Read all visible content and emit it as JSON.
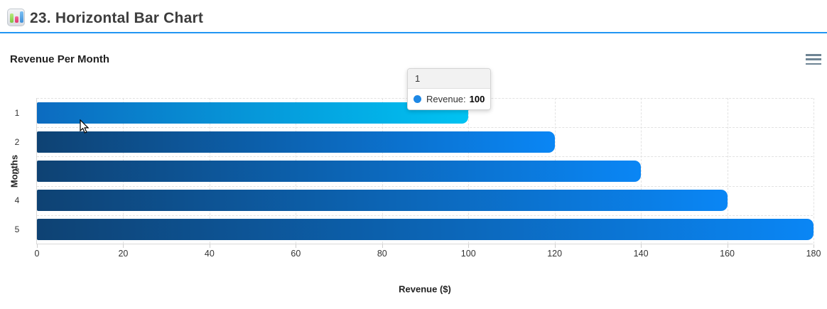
{
  "header": {
    "title": "23. Horizontal Bar Chart"
  },
  "chart": {
    "title": "Revenue Per Month",
    "xlabel": "Revenue ($)",
    "ylabel": "Months",
    "tooltip": {
      "category": "1",
      "series_label": "Revenue:",
      "value": "100"
    }
  },
  "chart_data": {
    "type": "bar",
    "orientation": "horizontal",
    "title": "Revenue Per Month",
    "xlabel": "Revenue ($)",
    "ylabel": "Months",
    "categories": [
      "1",
      "2",
      "3",
      "4",
      "5"
    ],
    "series": [
      {
        "name": "Revenue",
        "values": [
          100,
          120,
          140,
          160,
          180
        ]
      }
    ],
    "xlim": [
      0,
      180
    ],
    "xticks": [
      0,
      20,
      40,
      60,
      80,
      100,
      120,
      140,
      160,
      180
    ],
    "grid": true,
    "legend": false,
    "hovered_bar_index": 0,
    "colors": {
      "bar_gradient_start": "#0e4273",
      "bar_gradient_end": "#0a86f5",
      "bar_hover_gradient_start": "#0c6bc0",
      "bar_hover_gradient_end": "#00c3f2",
      "tooltip_marker": "#1e88e5",
      "accent_line": "#2196f3"
    }
  }
}
